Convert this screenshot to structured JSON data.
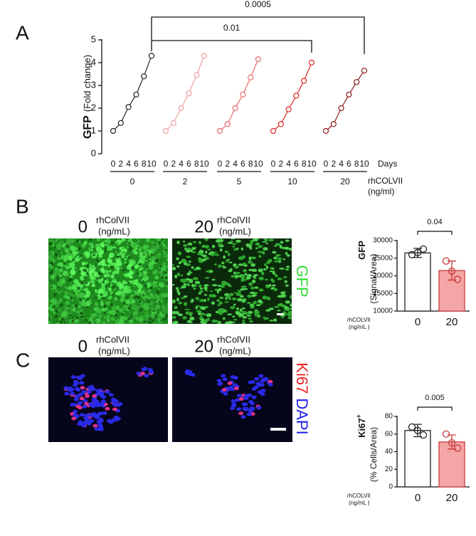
{
  "panel_labels": [
    "A",
    "B",
    "C"
  ],
  "chart_data": [
    {
      "type": "line",
      "ylabel": "GFP",
      "ylabel_unit": "(Fold change)",
      "x": [
        0,
        2,
        4,
        6,
        8,
        10
      ],
      "xlabel": "Days",
      "group_label": "rhCOLVII",
      "group_unit": "(ng/ml)",
      "ylim": [
        0,
        5
      ],
      "yticks": [
        0,
        1,
        2,
        3,
        4,
        5
      ],
      "series": [
        {
          "name": "0",
          "color": "#222222",
          "values": [
            1.0,
            1.35,
            2.05,
            2.6,
            3.4,
            4.3
          ]
        },
        {
          "name": "2",
          "color": "#f0a0a0",
          "values": [
            1.0,
            1.35,
            2.0,
            2.65,
            3.45,
            4.3
          ]
        },
        {
          "name": "5",
          "color": "#e86a6a",
          "values": [
            1.0,
            1.3,
            2.0,
            2.6,
            3.35,
            4.15
          ]
        },
        {
          "name": "10",
          "color": "#e02424",
          "values": [
            1.0,
            1.3,
            1.95,
            2.55,
            3.2,
            4.0
          ]
        },
        {
          "name": "20",
          "color": "#8b1a1a",
          "values": [
            1.0,
            1.3,
            2.0,
            2.6,
            3.15,
            3.65
          ]
        }
      ],
      "annotations": [
        "0.0005",
        "0.01"
      ]
    },
    {
      "type": "bar",
      "ylabel": "GFP",
      "ylabel_unit": "(Signal/Area)",
      "xlabel": "rhCOLVII",
      "xlabel_unit": "(ng/mL )",
      "categories": [
        "0",
        "20"
      ],
      "values": [
        26500,
        21500
      ],
      "errors": [
        1300,
        2700
      ],
      "points": [
        [
          26000,
          26600,
          27600
        ],
        [
          24200,
          21300,
          19000
        ]
      ],
      "colors": [
        "#ffffff",
        "#f4a6a6"
      ],
      "edge_colors": [
        "#222222",
        "#c83a3a"
      ],
      "ylim": [
        10000,
        30000
      ],
      "yticks": [
        10000,
        15000,
        20000,
        25000,
        30000
      ],
      "annotations": [
        "0.04"
      ]
    },
    {
      "type": "bar",
      "ylabel": "Ki67",
      "ylabel_superscript": "+",
      "ylabel_unit": "(% Cells/Area)",
      "xlabel": "rhCOLVII",
      "xlabel_unit": "(ng/mL )",
      "categories": [
        "0",
        "20"
      ],
      "values": [
        64,
        51
      ],
      "errors": [
        7,
        8
      ],
      "points": [
        [
          68,
          64,
          59
        ],
        [
          60,
          50,
          44
        ]
      ],
      "colors": [
        "#ffffff",
        "#f4a6a6"
      ],
      "edge_colors": [
        "#222222",
        "#c83a3a"
      ],
      "ylim": [
        0,
        80
      ],
      "yticks": [
        0,
        20,
        40,
        60,
        80
      ],
      "annotations": [
        "0.005"
      ]
    }
  ],
  "panel_b": {
    "images": [
      {
        "value": "0",
        "label": "rhColVII",
        "unit": "(ng/mL)"
      },
      {
        "value": "20",
        "label": "rhColVII",
        "unit": "(ng/mL)"
      }
    ],
    "stains": [
      "GFP"
    ]
  },
  "panel_c": {
    "images": [
      {
        "value": "0",
        "label": "rhColVII",
        "unit": "(ng/mL)"
      },
      {
        "value": "20",
        "label": "rhColVII",
        "unit": "(ng/mL)"
      }
    ],
    "stains": [
      "Ki67",
      "DAPI"
    ]
  }
}
